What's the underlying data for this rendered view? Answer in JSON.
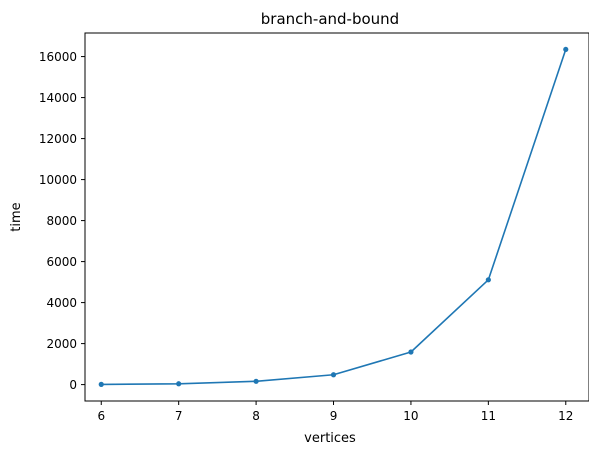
{
  "chart_data": {
    "type": "line",
    "title": "branch-and-bound",
    "xlabel": "vertices",
    "ylabel": "time",
    "x": [
      6,
      7,
      8,
      9,
      10,
      11,
      12
    ],
    "series": [
      {
        "values": [
          10,
          40,
          160,
          480,
          1590,
          5110,
          16350
        ]
      }
    ],
    "xlim": [
      5.79,
      12.3
    ],
    "ylim": [
      -800,
      17150
    ],
    "xticks": [
      6,
      7,
      8,
      9,
      10,
      11,
      12
    ],
    "xtick_labels": [
      "6",
      "7",
      "8",
      "9",
      "10",
      "11",
      "12"
    ],
    "yticks": [
      0,
      2000,
      4000,
      6000,
      8000,
      10000,
      12000,
      14000,
      16000
    ],
    "ytick_labels": [
      "0",
      "2000",
      "4000",
      "6000",
      "8000",
      "10000",
      "12000",
      "14000",
      "16000"
    ],
    "grid": false,
    "legend": "none",
    "line_color": "#1f77b4",
    "marker": "dot"
  }
}
